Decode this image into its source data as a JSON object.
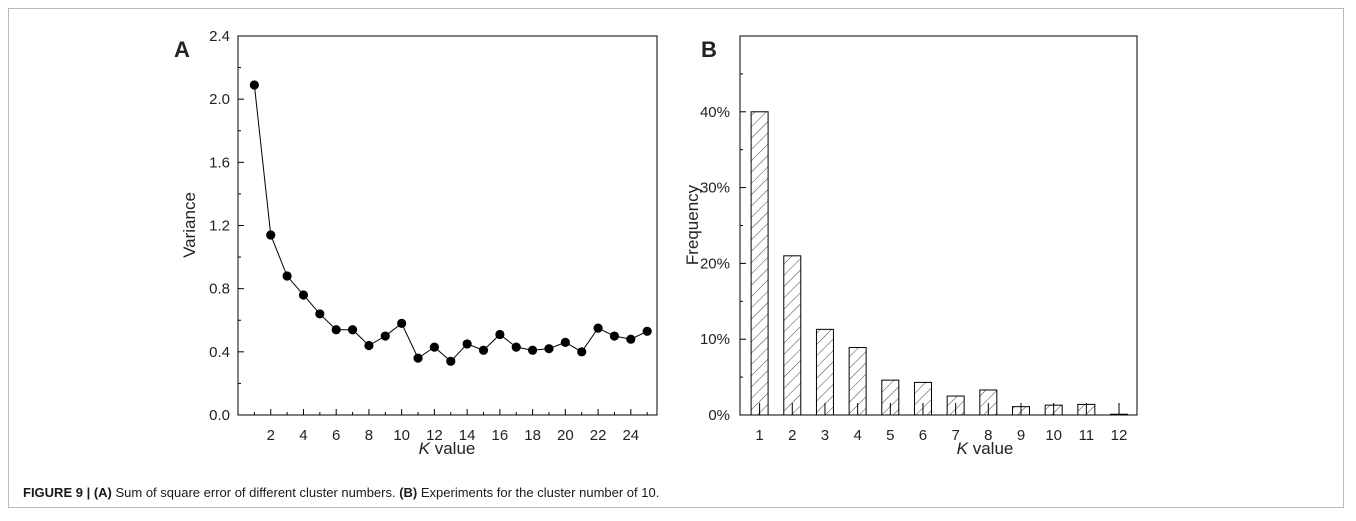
{
  "caption": {
    "figure_label": "FIGURE 9 | ",
    "part_a_ref": "(A)",
    "part_a_text": " Sum of square error of different cluster numbers. ",
    "part_b_ref": "(B)",
    "part_b_text": " Experiments for the cluster number of 10."
  },
  "chart_data": [
    {
      "panel": "A",
      "type": "line",
      "markers": true,
      "xlabel_italic": "K",
      "xlabel_rest": " value",
      "ylabel": "Variance",
      "xlim": [
        0,
        25.6
      ],
      "ylim": [
        0,
        2.4
      ],
      "xticks": [
        2,
        4,
        6,
        8,
        10,
        12,
        14,
        16,
        18,
        20,
        22,
        24
      ],
      "yticks": [
        "0.0",
        "0.4",
        "0.8",
        "1.2",
        "1.6",
        "2.0",
        "2.4"
      ],
      "x": [
        1,
        2,
        3,
        4,
        5,
        6,
        7,
        8,
        9,
        10,
        11,
        12,
        13,
        14,
        15,
        16,
        17,
        18,
        19,
        20,
        21,
        22,
        23,
        24,
        25
      ],
      "y": [
        2.09,
        1.14,
        0.88,
        0.76,
        0.64,
        0.54,
        0.54,
        0.44,
        0.5,
        0.58,
        0.36,
        0.43,
        0.34,
        0.45,
        0.41,
        0.51,
        0.43,
        0.41,
        0.42,
        0.46,
        0.4,
        0.55,
        0.5,
        0.48,
        0.53
      ],
      "grid": false,
      "line_color": "#000000"
    },
    {
      "panel": "B",
      "type": "bar",
      "hatch": "diagonal",
      "xlabel_italic": "K",
      "xlabel_rest": " value",
      "ylabel": "Frequency",
      "categories": [
        "1",
        "2",
        "3",
        "4",
        "5",
        "6",
        "7",
        "8",
        "9",
        "10",
        "11",
        "12"
      ],
      "values": [
        40,
        21,
        11.3,
        8.9,
        4.6,
        4.3,
        2.5,
        3.3,
        1.1,
        1.3,
        1.4,
        0.1
      ],
      "ylim": [
        0,
        50
      ],
      "yticks": [
        "0%",
        "10%",
        "20%",
        "30%",
        "40%"
      ],
      "grid": false
    }
  ]
}
